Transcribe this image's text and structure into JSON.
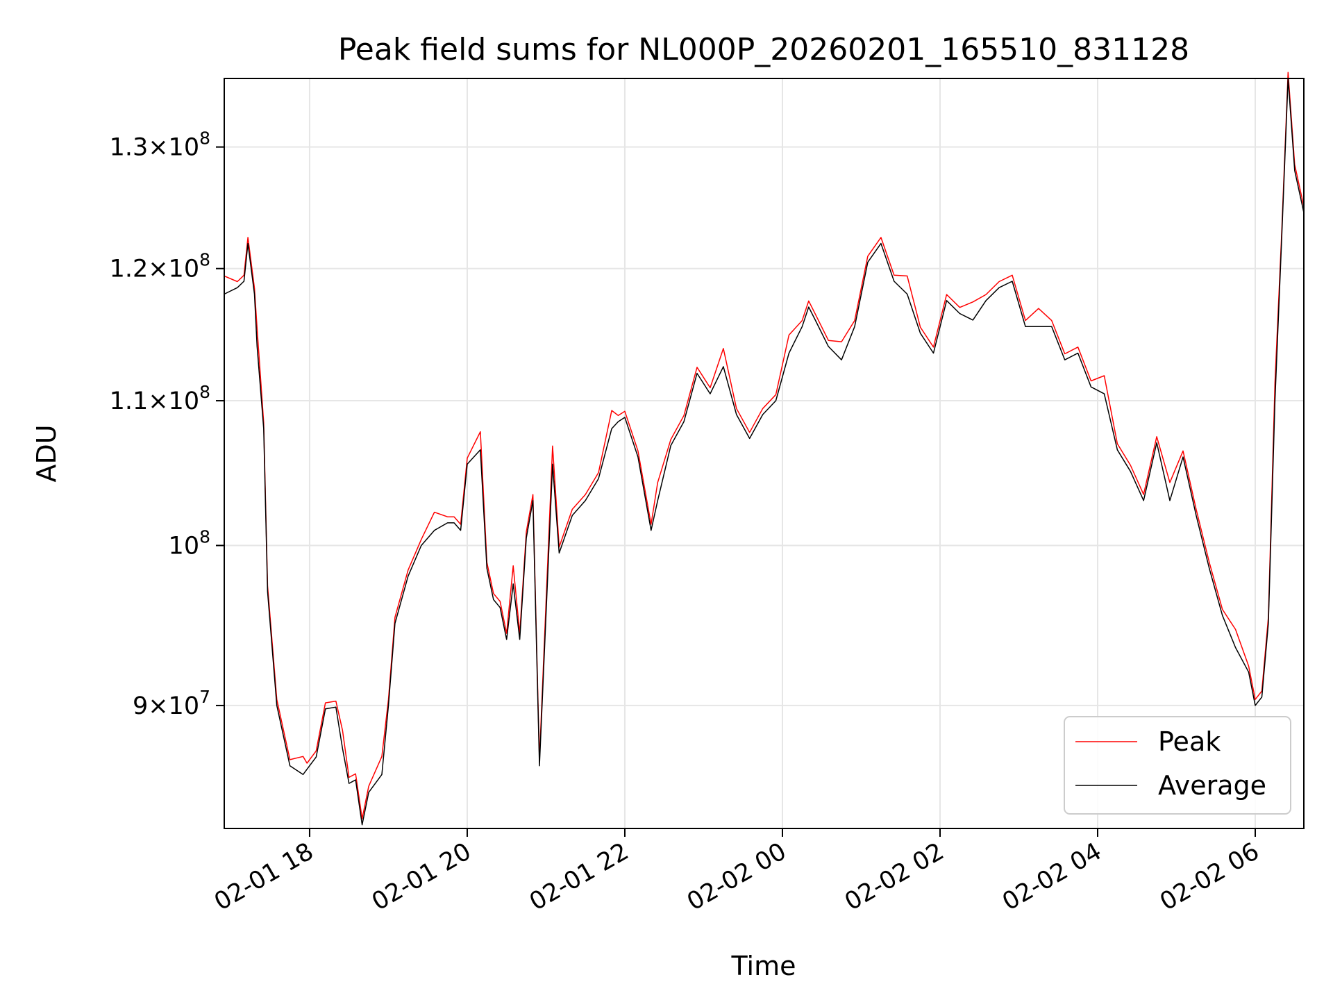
{
  "chart_data": {
    "type": "line",
    "title": "Peak field sums for NL000P_20260201_165510_831128",
    "xlabel": "Time",
    "ylabel": "ADU",
    "yscale": "log",
    "ylim": [
      83000000,
      136000000
    ],
    "xlim": [
      "2026-02-01T16:55",
      "2026-02-02T06:37"
    ],
    "grid": true,
    "legend_position": "lower right",
    "x_ticks": [
      {
        "t": "2026-02-01T18:00",
        "label": "02-01 18"
      },
      {
        "t": "2026-02-01T20:00",
        "label": "02-01 20"
      },
      {
        "t": "2026-02-01T22:00",
        "label": "02-01 22"
      },
      {
        "t": "2026-02-02T00:00",
        "label": "02-02 00"
      },
      {
        "t": "2026-02-02T02:00",
        "label": "02-02 02"
      },
      {
        "t": "2026-02-02T04:00",
        "label": "02-02 04"
      },
      {
        "t": "2026-02-02T06:00",
        "label": "02-02 06"
      }
    ],
    "y_ticks": [
      {
        "value": 90000000,
        "mant": "9",
        "exp": "7"
      },
      {
        "value": 100000000,
        "mant": "",
        "exp": "8"
      },
      {
        "value": 110000000,
        "mant": "1.1",
        "exp": "8"
      },
      {
        "value": 120000000,
        "mant": "1.2",
        "exp": "8"
      },
      {
        "value": 130000000,
        "mant": "1.3",
        "exp": "8"
      }
    ],
    "series": [
      {
        "name": "Peak",
        "color": "#ff0000"
      },
      {
        "name": "Average",
        "color": "#000000"
      }
    ],
    "x": [
      "2026-02-01T16:55",
      "2026-02-01T17:05",
      "2026-02-01T17:10",
      "2026-02-01T17:13",
      "2026-02-01T17:18",
      "2026-02-01T17:20",
      "2026-02-01T17:25",
      "2026-02-01T17:28",
      "2026-02-01T17:35",
      "2026-02-01T17:45",
      "2026-02-01T17:55",
      "2026-02-01T17:58",
      "2026-02-01T18:05",
      "2026-02-01T18:12",
      "2026-02-01T18:20",
      "2026-02-01T18:25",
      "2026-02-01T18:30",
      "2026-02-01T18:35",
      "2026-02-01T18:40",
      "2026-02-01T18:45",
      "2026-02-01T18:55",
      "2026-02-01T19:00",
      "2026-02-01T19:05",
      "2026-02-01T19:15",
      "2026-02-01T19:25",
      "2026-02-01T19:35",
      "2026-02-01T19:45",
      "2026-02-01T19:50",
      "2026-02-01T19:55",
      "2026-02-01T20:00",
      "2026-02-01T20:10",
      "2026-02-01T20:15",
      "2026-02-01T20:20",
      "2026-02-01T20:25",
      "2026-02-01T20:30",
      "2026-02-01T20:35",
      "2026-02-01T20:40",
      "2026-02-01T20:45",
      "2026-02-01T20:50",
      "2026-02-01T20:55",
      "2026-02-01T21:05",
      "2026-02-01T21:10",
      "2026-02-01T21:20",
      "2026-02-01T21:30",
      "2026-02-01T21:40",
      "2026-02-01T21:50",
      "2026-02-01T21:55",
      "2026-02-01T22:00",
      "2026-02-01T22:10",
      "2026-02-01T22:20",
      "2026-02-01T22:25",
      "2026-02-01T22:35",
      "2026-02-01T22:45",
      "2026-02-01T22:55",
      "2026-02-01T23:05",
      "2026-02-01T23:15",
      "2026-02-01T23:25",
      "2026-02-01T23:35",
      "2026-02-01T23:45",
      "2026-02-01T23:55",
      "2026-02-02T00:05",
      "2026-02-02T00:15",
      "2026-02-02T00:20",
      "2026-02-02T00:25",
      "2026-02-02T00:35",
      "2026-02-02T00:45",
      "2026-02-02T00:55",
      "2026-02-02T01:05",
      "2026-02-02T01:15",
      "2026-02-02T01:25",
      "2026-02-02T01:35",
      "2026-02-02T01:45",
      "2026-02-02T01:55",
      "2026-02-02T02:05",
      "2026-02-02T02:15",
      "2026-02-02T02:25",
      "2026-02-02T02:35",
      "2026-02-02T02:45",
      "2026-02-02T02:55",
      "2026-02-02T03:05",
      "2026-02-02T03:15",
      "2026-02-02T03:25",
      "2026-02-02T03:35",
      "2026-02-02T03:45",
      "2026-02-02T03:55",
      "2026-02-02T04:05",
      "2026-02-02T04:15",
      "2026-02-02T04:25",
      "2026-02-02T04:35",
      "2026-02-02T04:45",
      "2026-02-02T04:55",
      "2026-02-02T05:05",
      "2026-02-02T05:15",
      "2026-02-02T05:25",
      "2026-02-02T05:35",
      "2026-02-02T05:45",
      "2026-02-02T05:55",
      "2026-02-02T06:00",
      "2026-02-02T06:05",
      "2026-02-02T06:10",
      "2026-02-02T06:15",
      "2026-02-02T06:20",
      "2026-02-02T06:25",
      "2026-02-02T06:30",
      "2026-02-02T06:37"
    ],
    "average": [
      118000000,
      118500000,
      119000000,
      122000000,
      118000000,
      114000000,
      108000000,
      97000000,
      90000000,
      86500000,
      86000000,
      86300000,
      87000000,
      89800000,
      89900000,
      87500000,
      85500000,
      85700000,
      83200000,
      85000000,
      86000000,
      90000000,
      95000000,
      98000000,
      100000000,
      101000000,
      101500000,
      101500000,
      101000000,
      105500000,
      106500000,
      98500000,
      96500000,
      96000000,
      94000000,
      97500000,
      94000000,
      100500000,
      103000000,
      86500000,
      105500000,
      99500000,
      102000000,
      103000000,
      104500000,
      108000000,
      108500000,
      108800000,
      106000000,
      101000000,
      103000000,
      106800000,
      108500000,
      112000000,
      110500000,
      112500000,
      109000000,
      107300000,
      109000000,
      110000000,
      113500000,
      115500000,
      117000000,
      116000000,
      114000000,
      113000000,
      115500000,
      120500000,
      122000000,
      119000000,
      118000000,
      115000000,
      113500000,
      117500000,
      116500000,
      116000000,
      117500000,
      118500000,
      119000000,
      115500000,
      115500000,
      115500000,
      113000000,
      113500000,
      111000000,
      110500000,
      106500000,
      105000000,
      103000000,
      107000000,
      103000000,
      106000000,
      102000000,
      98500000,
      95500000,
      93500000,
      92000000,
      90000000,
      90500000,
      95000000,
      110000000,
      122000000,
      136000000,
      128000000,
      124500000
    ]
  },
  "axes": {
    "times_symbol": "×",
    "base": "10"
  }
}
